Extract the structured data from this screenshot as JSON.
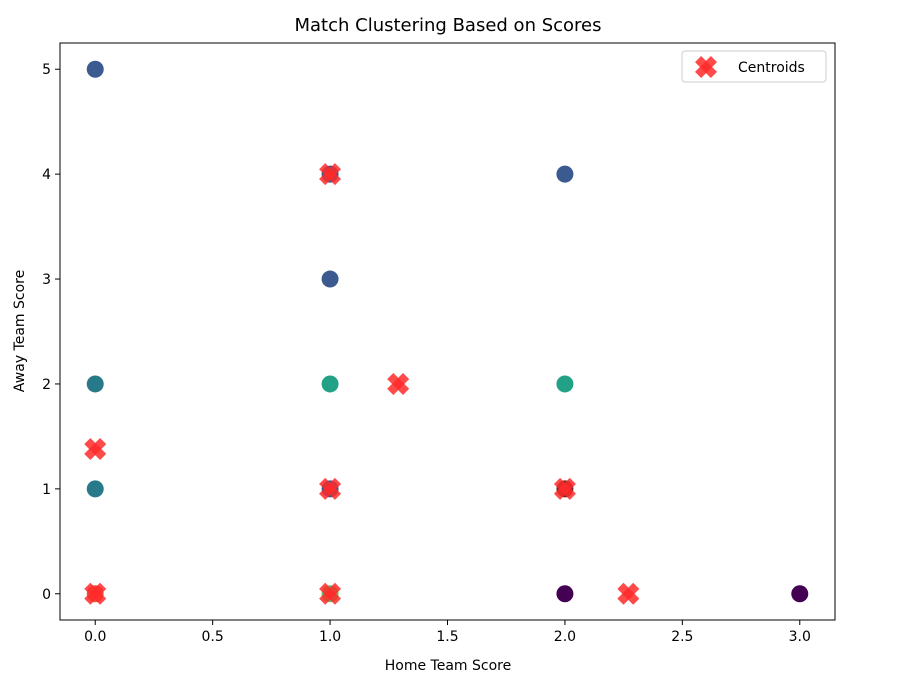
{
  "chart_data": {
    "type": "scatter",
    "title": "Match Clustering Based on Scores",
    "xlabel": "Home Team Score",
    "ylabel": "Away Team Score",
    "xlim": [
      -0.15,
      3.15
    ],
    "ylim": [
      -0.25,
      5.25
    ],
    "xticks": [
      0.0,
      0.5,
      1.0,
      1.5,
      2.0,
      2.5,
      3.0
    ],
    "xtick_labels": [
      "0.0",
      "0.5",
      "1.0",
      "1.5",
      "2.0",
      "2.5",
      "3.0"
    ],
    "yticks": [
      0,
      1,
      2,
      3,
      4,
      5
    ],
    "ytick_labels": [
      "0",
      "1",
      "2",
      "3",
      "4",
      "5"
    ],
    "grid": false,
    "legend": {
      "placement": "top-right",
      "entries": [
        "Centroids"
      ]
    },
    "points": [
      {
        "x": 0,
        "y": 5,
        "color": "#3b5a8f"
      },
      {
        "x": 0,
        "y": 2,
        "color": "#287a8a"
      },
      {
        "x": 0,
        "y": 1,
        "color": "#287a8a"
      },
      {
        "x": 0,
        "y": 0,
        "color": "#e8553a"
      },
      {
        "x": 1,
        "y": 4,
        "color": "#3b5a8f"
      },
      {
        "x": 1,
        "y": 3,
        "color": "#3b5a8f"
      },
      {
        "x": 1,
        "y": 2,
        "color": "#22a187"
      },
      {
        "x": 1,
        "y": 1,
        "color": "#3b5a8f"
      },
      {
        "x": 1,
        "y": 0,
        "color": "#5cc163"
      },
      {
        "x": 2,
        "y": 4,
        "color": "#3b5a8f"
      },
      {
        "x": 2,
        "y": 2,
        "color": "#22a187"
      },
      {
        "x": 2,
        "y": 1,
        "color": "#6c2a25"
      },
      {
        "x": 2,
        "y": 0,
        "color": "#440154"
      },
      {
        "x": 3,
        "y": 0,
        "color": "#440154"
      }
    ],
    "centroids": [
      {
        "x": 0,
        "y": 1.38
      },
      {
        "x": 0,
        "y": 0
      },
      {
        "x": 1,
        "y": 4
      },
      {
        "x": 1.29,
        "y": 2
      },
      {
        "x": 1,
        "y": 1
      },
      {
        "x": 1,
        "y": 0
      },
      {
        "x": 2,
        "y": 1
      },
      {
        "x": 2.27,
        "y": 0
      }
    ],
    "centroid_color": "#ff2a2a"
  }
}
